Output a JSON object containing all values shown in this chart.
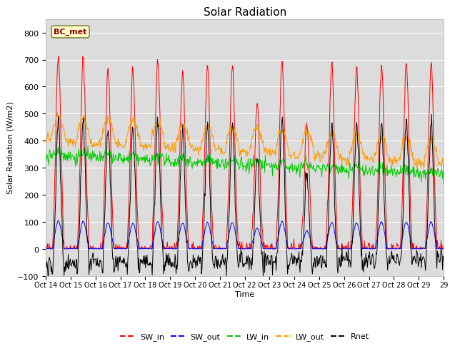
{
  "title": "Solar Radiation",
  "ylabel": "Solar Radiation (W/m2)",
  "xlabel": "Time",
  "ylim": [
    -100,
    850
  ],
  "yticks": [
    -100,
    0,
    100,
    200,
    300,
    400,
    500,
    600,
    700,
    800
  ],
  "plot_bg": "#dcdcdc",
  "fig_bg": "#ffffff",
  "annotation_text": "BC_met",
  "annotation_bg": "#ffffcc",
  "annotation_border": "#8B0000",
  "n_days": 16,
  "xtick_labels": [
    "Oct 14",
    "Oct 15",
    "Oct 16",
    "Oct 17",
    "Oct 18",
    "Oct 19",
    "Oct 20",
    "Oct 21",
    "Oct 22",
    "Oct 23",
    "Oct 24",
    "Oct 25",
    "Oct 26",
    "Oct 27",
    "Oct 28",
    "Oct 29"
  ],
  "colors": {
    "SW_in": "#ff0000",
    "SW_out": "#0000ff",
    "LW_in": "#00cc00",
    "LW_out": "#ff9900",
    "Rnet": "#000000"
  },
  "legend_labels": [
    "SW_in",
    "SW_out",
    "LW_in",
    "LW_out",
    "Rnet"
  ]
}
